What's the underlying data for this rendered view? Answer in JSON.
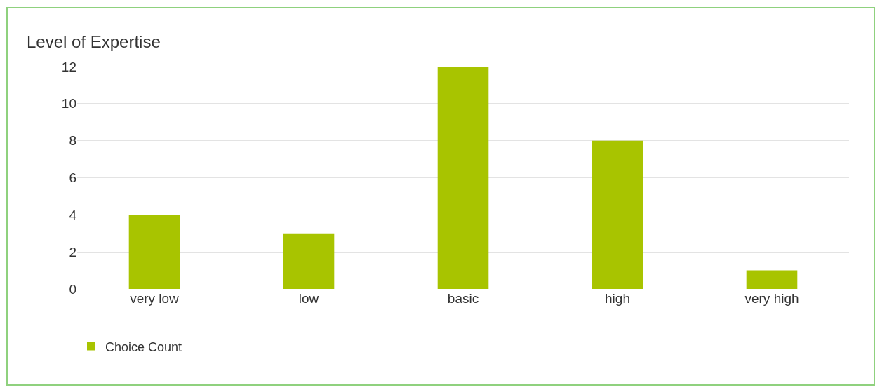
{
  "chart_data": {
    "type": "bar",
    "title": "Level of Expertise",
    "categories": [
      "very low",
      "low",
      "basic",
      "high",
      "very high"
    ],
    "series": [
      {
        "name": "Choice Count",
        "color": "#a8c400",
        "values": [
          4,
          3,
          12,
          8,
          1
        ]
      }
    ],
    "ylim": [
      0,
      12
    ],
    "yticks": [
      0,
      2,
      4,
      6,
      8,
      10,
      12
    ],
    "grid": "y",
    "legend": "bottom left"
  }
}
